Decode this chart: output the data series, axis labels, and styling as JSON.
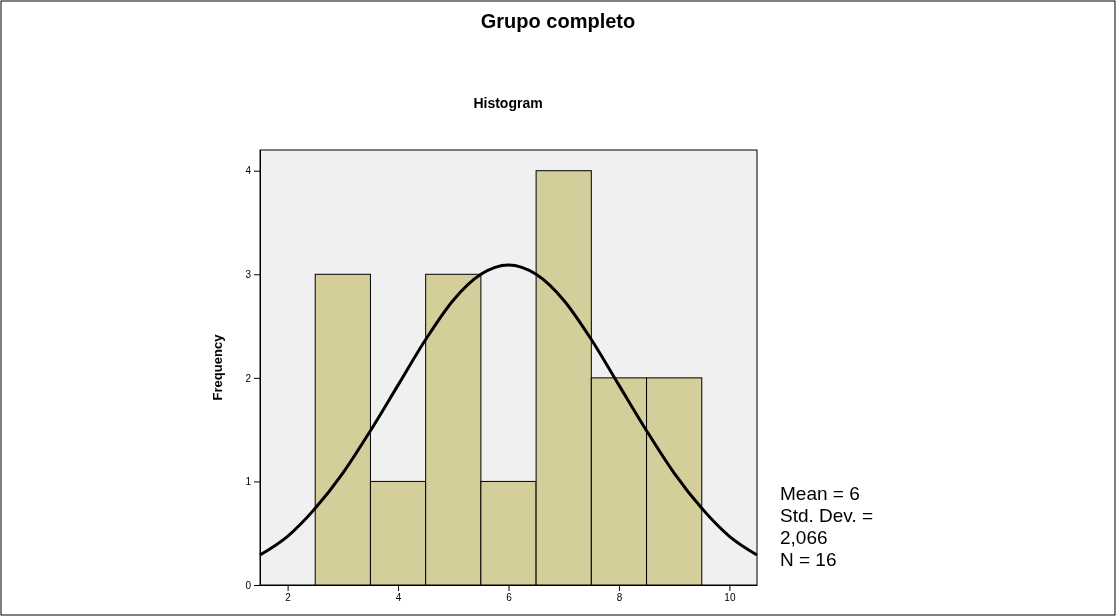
{
  "chart_data": {
    "type": "histogram",
    "title": "Grupo completo",
    "subtitle": "Histogram",
    "ylabel": "Frequency",
    "bins": [
      2.5,
      3.5,
      4.5,
      5.5,
      6.5,
      7.5,
      8.5,
      9.5
    ],
    "values": [
      3,
      1,
      3,
      1,
      4,
      2,
      2
    ],
    "color": "#d3ce9a",
    "series": [
      {
        "type": "line",
        "color": "#000000",
        "x": [
          1.5,
          2,
          2.5,
          3,
          3.5,
          4,
          4.5,
          5,
          5.5,
          6,
          6.5,
          7,
          7.5,
          8,
          8.5,
          9,
          9.5,
          10,
          10.5
        ],
        "values": [
          0.29,
          0.47,
          0.74,
          1.08,
          1.49,
          1.93,
          2.37,
          2.75,
          3.0,
          3.09,
          3.0,
          2.75,
          2.37,
          1.93,
          1.49,
          1.08,
          0.74,
          0.47,
          0.29
        ]
      }
    ],
    "xlim": [
      1.5,
      10.5
    ],
    "xticks": [
      2,
      4,
      6,
      8,
      10
    ],
    "ylim": [
      0,
      4.2
    ],
    "yticks": [
      0,
      1,
      2,
      3,
      4
    ],
    "annotations": [
      "Mean = 6",
      "Std. Dev. = 2,066",
      "N = 16"
    ]
  }
}
